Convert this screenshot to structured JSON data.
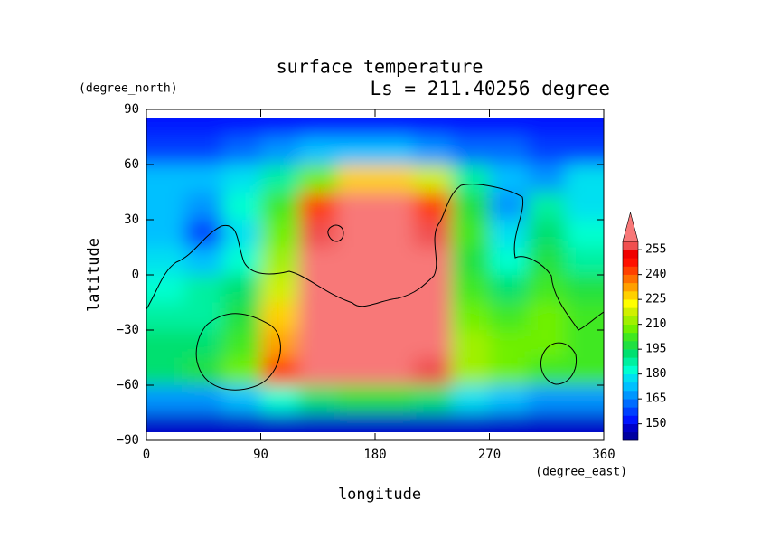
{
  "chart_data": {
    "type": "contour",
    "title": "surface temperature",
    "subtitle": "Ls = 211.40256 degree",
    "x_label": "longitude",
    "y_label": "latitude",
    "x_unit": "(degree_east)",
    "y_unit": "(degree_north)",
    "xlim": [
      0,
      360
    ],
    "ylim": [
      -90,
      90
    ],
    "xticks": [
      0,
      90,
      180,
      270,
      360
    ],
    "yticks": [
      90,
      60,
      30,
      0,
      {
        "value": -30,
        "label": "−30"
      },
      {
        "value": -60,
        "label": "−60"
      },
      {
        "value": -90,
        "label": "−90"
      }
    ],
    "lon": [
      15,
      45,
      75,
      105,
      135,
      165,
      195,
      225,
      255,
      285,
      315,
      345
    ],
    "lat": [
      82.5,
      67.5,
      52.5,
      37.5,
      22.5,
      7.5,
      -7.5,
      -22.5,
      -37.5,
      -52.5,
      -67.5,
      -82.5
    ],
    "z": [
      [
        152,
        152,
        152,
        152,
        152,
        152,
        152,
        152,
        152,
        152,
        152,
        152
      ],
      [
        158,
        158,
        160,
        165,
        170,
        172,
        172,
        168,
        162,
        160,
        158,
        158
      ],
      [
        172,
        172,
        175,
        185,
        205,
        225,
        228,
        215,
        185,
        170,
        168,
        175
      ],
      [
        170,
        168,
        180,
        200,
        240,
        262,
        262,
        240,
        195,
        165,
        185,
        175
      ],
      [
        172,
        158,
        175,
        205,
        255,
        262,
        262,
        255,
        200,
        175,
        190,
        180
      ],
      [
        175,
        170,
        180,
        210,
        260,
        262,
        262,
        262,
        195,
        180,
        195,
        185
      ],
      [
        182,
        185,
        190,
        215,
        262,
        262,
        262,
        262,
        200,
        190,
        200,
        195
      ],
      [
        185,
        188,
        195,
        225,
        262,
        262,
        262,
        262,
        205,
        200,
        205,
        200
      ],
      [
        190,
        192,
        200,
        230,
        262,
        262,
        262,
        262,
        210,
        205,
        205,
        200
      ],
      [
        192,
        195,
        205,
        240,
        262,
        262,
        262,
        255,
        210,
        205,
        200,
        200
      ],
      [
        165,
        165,
        170,
        180,
        190,
        195,
        195,
        190,
        175,
        170,
        168,
        165
      ],
      [
        148,
        148,
        148,
        148,
        148,
        148,
        148,
        148,
        148,
        148,
        148,
        148
      ]
    ],
    "levels": [
      140,
      145,
      150,
      155,
      160,
      165,
      170,
      175,
      180,
      185,
      190,
      195,
      200,
      205,
      210,
      215,
      220,
      225,
      230,
      235,
      240,
      245,
      250,
      255,
      260
    ],
    "colors": [
      "#0000a0",
      "#0000c8",
      "#0014ff",
      "#0040ff",
      "#006cff",
      "#0096ff",
      "#00c0ff",
      "#00e0f0",
      "#00ffd0",
      "#00f0a0",
      "#00e070",
      "#20e040",
      "#40e820",
      "#70f000",
      "#a0f000",
      "#d0f000",
      "#ffff00",
      "#ffd000",
      "#ffa000",
      "#ff7000",
      "#ff4000",
      "#ff1000",
      "#f00000",
      "#f05050",
      "#f87878"
    ],
    "colorbar_ticks": [
      150,
      165,
      180,
      195,
      210,
      225,
      240,
      255
    ]
  }
}
